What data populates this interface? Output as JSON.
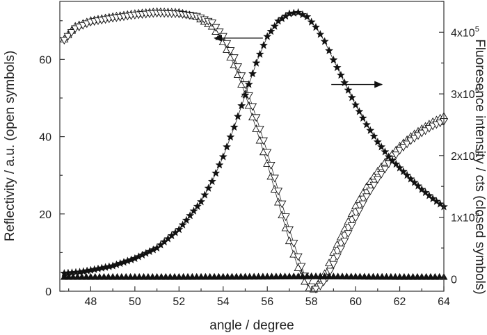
{
  "chart_data": {
    "type": "scatter",
    "xlabel": "angle / degree",
    "ylabel_left": "Reflectivity / a.u. (open symbols)",
    "ylabel_right": "Fluoresence intensity / cts (closed symbols)",
    "xlim": [
      46.6,
      64
    ],
    "ylim_left": [
      0,
      75
    ],
    "ylim_right": [
      -20000,
      450000
    ],
    "x_ticks": [
      "48",
      "50",
      "52",
      "54",
      "56",
      "58",
      "60",
      "62",
      "64"
    ],
    "y_left_ticks": [
      "0",
      "20",
      "40",
      "60"
    ],
    "y_right_ticks": [
      {
        "base": "0",
        "exp": ""
      },
      {
        "base": "1x10",
        "exp": "5"
      },
      {
        "base": "2x10",
        "exp": "5"
      },
      {
        "base": "3x10",
        "exp": "5"
      },
      {
        "base": "4x10",
        "exp": "5"
      }
    ],
    "grid": false,
    "legend": "none",
    "annotations": [
      {
        "type": "arrow",
        "direction": "left",
        "points_to": "left-axis",
        "from_x": 55.8,
        "to_x": 53.6,
        "y_left": 65.5
      },
      {
        "type": "arrow",
        "direction": "right",
        "points_to": "right-axis",
        "from_x": 58.9,
        "to_x": 61.2,
        "y_left": 53.5
      }
    ],
    "series": [
      {
        "symbol": "open-triangle-up",
        "axis": "left",
        "x": [
          46.8,
          47.3,
          48,
          49,
          50,
          51,
          52,
          52.8,
          53.5,
          54,
          54.5,
          55,
          55.5,
          56,
          56.5,
          57,
          57.4,
          57.7,
          57.9,
          58.1,
          58.3,
          58.6,
          59,
          59.5,
          60,
          60.5,
          61,
          61.5,
          62,
          62.5,
          63,
          63.5,
          64
        ],
        "y": [
          65.2,
          68.5,
          70,
          71,
          71.8,
          72.3,
          72.1,
          71,
          68.5,
          64.5,
          58.5,
          51,
          42,
          33,
          23,
          13,
          6,
          2.5,
          0.8,
          0.5,
          1.8,
          4.5,
          10,
          16,
          22,
          27,
          31,
          34.5,
          37.5,
          40,
          42,
          43.8,
          45.2
        ]
      },
      {
        "symbol": "open-triangle-down",
        "axis": "left",
        "x": [
          46.8,
          47.3,
          48,
          49,
          50,
          51,
          52,
          52.8,
          53.5,
          54,
          54.5,
          55,
          55.5,
          56,
          56.5,
          57,
          57.4,
          57.7,
          58,
          58.2,
          58.4,
          58.7,
          59,
          59.5,
          60,
          60.5,
          61,
          61.5,
          62,
          62.5,
          63,
          63.5,
          64
        ],
        "y": [
          65,
          68,
          69.7,
          70.7,
          71.5,
          72,
          71.8,
          71.2,
          69.5,
          66,
          60.5,
          53.5,
          45,
          36,
          26,
          16,
          9,
          4,
          1.2,
          0.6,
          1.4,
          3.5,
          7,
          13,
          19,
          24.5,
          29,
          33,
          36.5,
          39,
          41,
          42.8,
          44
        ]
      },
      {
        "symbol": "filled-star",
        "axis": "right",
        "x": [
          46.8,
          47.5,
          48,
          49,
          50,
          51,
          52,
          53,
          53.5,
          54,
          54.5,
          55,
          55.5,
          56,
          56.5,
          57,
          57.4,
          57.8,
          58.2,
          58.6,
          59,
          59.5,
          60,
          60.5,
          61,
          61.5,
          62,
          62.5,
          63,
          63.5,
          64
        ],
        "y": [
          9000,
          11000,
          14000,
          21000,
          33000,
          50000,
          80000,
          125000,
          158000,
          198000,
          246000,
          298000,
          350000,
          393000,
          418000,
          430000,
          432000,
          425000,
          408000,
          385000,
          355000,
          318000,
          282000,
          250000,
          222000,
          198000,
          180000,
          162000,
          145000,
          130000,
          117000
        ]
      },
      {
        "symbol": "filled-triangle-up",
        "axis": "right",
        "x": [
          46.8,
          48,
          50,
          52,
          54,
          56,
          58,
          60,
          62,
          64
        ],
        "y": [
          3000,
          3000,
          3000,
          3000,
          3200,
          3500,
          4000,
          3500,
          3000,
          3000
        ]
      }
    ]
  }
}
